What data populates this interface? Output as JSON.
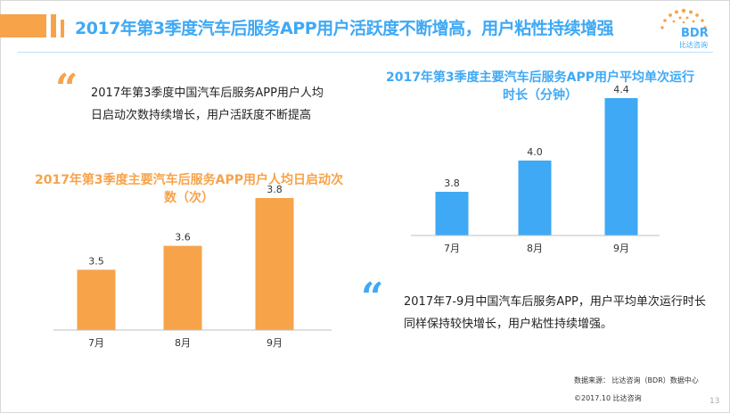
{
  "header": {
    "title": "2017年第3季度汽车后服务APP用户活跃度不断增高，用户粘性持续增强",
    "logo_text": "BDR",
    "logo_sub": "比达咨询"
  },
  "notes": {
    "left": "2017年第3季度中国汽车后服务APP用户人均日启动次数持续增长，用户活跃度不断提高",
    "right": "2017年7-9月中国汽车后服务APP，用户平均单次运行时长同样保持较快增长，用户粘性持续增强。",
    "quote_symbol": "“"
  },
  "chart_data": [
    {
      "type": "bar",
      "title": "2017年第3季度主要汽车后服务APP用户人均日启动次数（次）",
      "categories": [
        "7月",
        "8月",
        "9月"
      ],
      "values": [
        3.5,
        3.6,
        3.8
      ],
      "value_labels": [
        "3.5",
        "3.6",
        "3.8"
      ],
      "xlabel": "",
      "ylabel": "",
      "ylim": [
        3.3,
        3.8
      ],
      "color": "#f7a34a",
      "grid": false
    },
    {
      "type": "bar",
      "title": "2017年第3季度主要汽车后服务APP用户平均单次运行时长（分钟）",
      "categories": [
        "7月",
        "8月",
        "9月"
      ],
      "values": [
        3.8,
        4.0,
        4.4
      ],
      "value_labels": [
        "3.8",
        "4.0",
        "4.4"
      ],
      "xlabel": "",
      "ylabel": "",
      "ylim": [
        3.6,
        4.4
      ],
      "color": "#3fa9f5",
      "grid": false
    }
  ],
  "footer": {
    "source": "数据来源： 比达咨询（BDR）数据中心",
    "copyright": "©2017.10   比达咨询",
    "page": "13"
  }
}
